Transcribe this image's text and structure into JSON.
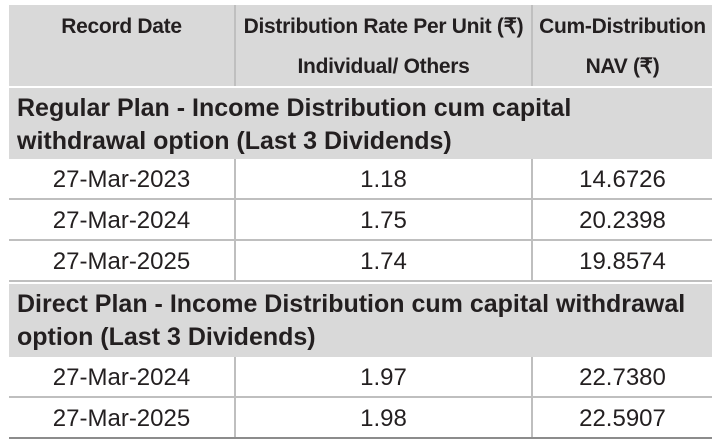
{
  "header": {
    "record_date": "Record Date",
    "distribution_line1": "Distribution Rate Per Unit  (₹)",
    "distribution_line2": "Individual/ Others",
    "nav_line1": "Cum-Distribution",
    "nav_line2": "NAV (₹)"
  },
  "sections": [
    {
      "title": "Regular Plan - Income Distribution cum capital withdrawal option (Last 3 Dividends)",
      "rows": [
        {
          "record_date": "27-Mar-2023",
          "rate": "1.18",
          "nav": "14.6726"
        },
        {
          "record_date": "27-Mar-2024",
          "rate": "1.75",
          "nav": "20.2398"
        },
        {
          "record_date": "27-Mar-2025",
          "rate": "1.74",
          "nav": "19.8574"
        }
      ]
    },
    {
      "title": "Direct Plan - Income Distribution cum capital withdrawal option (Last 3 Dividends)",
      "rows": [
        {
          "record_date": "27-Mar-2024",
          "rate": "1.97",
          "nav": "22.7380"
        },
        {
          "record_date": "27-Mar-2025",
          "rate": "1.98",
          "nav": "22.5907"
        }
      ]
    }
  ]
}
